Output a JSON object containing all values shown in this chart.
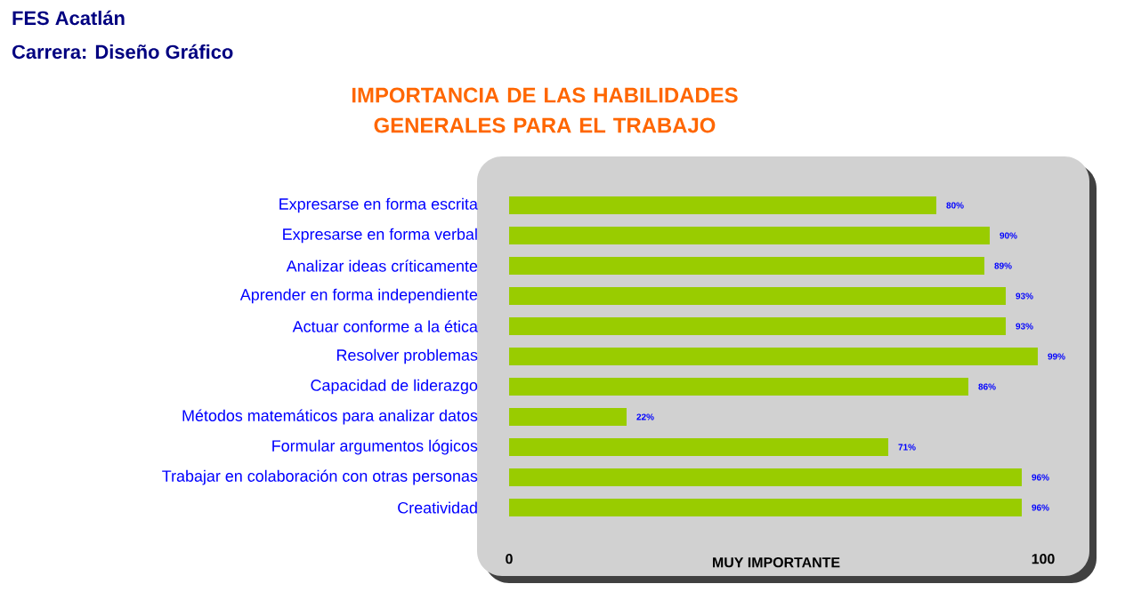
{
  "chart_data": {
    "type": "bar",
    "orientation": "horizontal",
    "title": "IMPORTANCIA DE LAS HABILIDADES GENERALES PARA EL TRABAJO",
    "annotations": [
      "FES Acatlán",
      "Carrera: Diseño Gráfico"
    ],
    "categories": [
      "Expresarse en forma escrita",
      "Expresarse en forma verbal",
      "Analizar ideas críticamente",
      "Aprender en forma independiente",
      "Actuar conforme a la ética",
      "Resolver problemas",
      "Capacidad de liderazgo",
      "Métodos matemáticos para analizar datos",
      "Formular argumentos lógicos",
      "Trabajar en colaboración con otras personas",
      "Creatividad"
    ],
    "values": [
      80,
      90,
      89,
      93,
      93,
      99,
      86,
      22,
      71,
      96,
      96
    ],
    "value_labels": [
      "80%",
      "90%",
      "89%",
      "93%",
      "93%",
      "99%",
      "86%",
      "22%",
      "71%",
      "96%",
      "96%"
    ],
    "color": "#99cc00",
    "xlabel": "MUY IMPORTANTE",
    "xlim": [
      0,
      100
    ],
    "xticks": [
      0,
      100
    ]
  }
}
